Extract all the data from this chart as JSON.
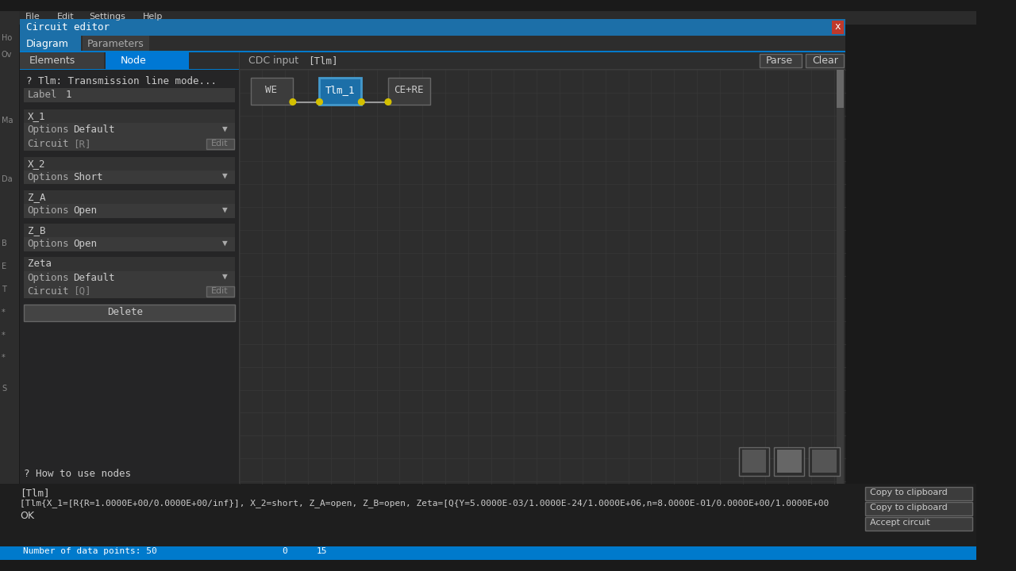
{
  "title": "Circuit editor",
  "menu_items": [
    "File",
    "Edit",
    "Settings",
    "Help"
  ],
  "tabs_main": [
    "Diagram",
    "Parameters"
  ],
  "active_tab": "Diagram",
  "panel_tabs": [
    "Elements",
    "Node"
  ],
  "active_panel_tab": "Node",
  "cdc_label": "CDC input",
  "cdc_value": "[Tlm]",
  "btn_parse": "Parse",
  "btn_clear": "Clear",
  "info_text": "? Tlm: Transmission line mode...",
  "label_text": "Label",
  "label_value": "1",
  "params": [
    {
      "name": "X_1",
      "options_label": "Options",
      "options_value": "Default",
      "has_circuit": true,
      "circuit_label": "Circuit",
      "circuit_value": "[R]"
    },
    {
      "name": "X_2",
      "options_label": "Options",
      "options_value": "Short",
      "has_circuit": false
    },
    {
      "name": "Z_A",
      "options_label": "Options",
      "options_value": "Open",
      "has_circuit": false
    },
    {
      "name": "Z_B",
      "options_label": "Options",
      "options_value": "Open",
      "has_circuit": false
    },
    {
      "name": "Zeta",
      "options_label": "Options",
      "options_value": "Default",
      "has_circuit": true,
      "circuit_label": "Circuit",
      "circuit_value": "[Q]"
    }
  ],
  "delete_btn": "Delete",
  "help_text": "? How to use nodes",
  "bottom_label": "[Tlm]",
  "bottom_text": "[Tlm{X_1=[R{R=1.0000E+00/0.0000E+00/inf}], X_2=short, Z_A=open, Z_B=open, Zeta=[Q{Y=5.0000E-03/1.0000E-24/1.0000E+06,n=8.0000E-01/0.0000E+00/1.0000E+00",
  "ok_text": "OK",
  "btn_copy1": "Copy to clipboard",
  "btn_copy2": "Copy to clipboard",
  "btn_accept": "Accept circuit",
  "bg_dark": "#1a1a1a",
  "bg_panel": "#252526",
  "bg_field": "#3a3a3a",
  "bg_field2": "#333333",
  "titlebar_color": "#1c6fa8",
  "active_tab_bg": "#1c6fa8",
  "inactive_tab_bg": "#3c3c3c",
  "node_tab_active_bg": "#0078d4",
  "elements_tab_bg": "#3c3c3c",
  "grid_bg": "#2d2d2d",
  "grid_line": "#383838",
  "text_white": "#ffffff",
  "text_main": "#cccccc",
  "text_dim": "#888888",
  "text_label": "#aaaaaa",
  "we_box_bg": "#3c3c3c",
  "we_box_border": "#666666",
  "tlm_box_bg": "#1c6fa8",
  "tlm_box_border": "#4499cc",
  "ce_box_bg": "#3c3c3c",
  "ce_box_border": "#666666",
  "node_dot": "#d4c000",
  "wire_color": "#999999",
  "scrollbar_track": "#3c3c3c",
  "scrollbar_thumb": "#686868",
  "thumb_box_bg": "#555555",
  "thumb_box_border": "#888888",
  "btn_bg": "#3c3c3c",
  "btn_border": "#666666",
  "status_bar_bg": "#007acc",
  "sidebar_bg": "#333333",
  "sidebar_text": "#888888",
  "close_btn_bg": "#c0392b",
  "separator_color": "#3c3c3c",
  "bottom_bg": "#1e1e1e"
}
